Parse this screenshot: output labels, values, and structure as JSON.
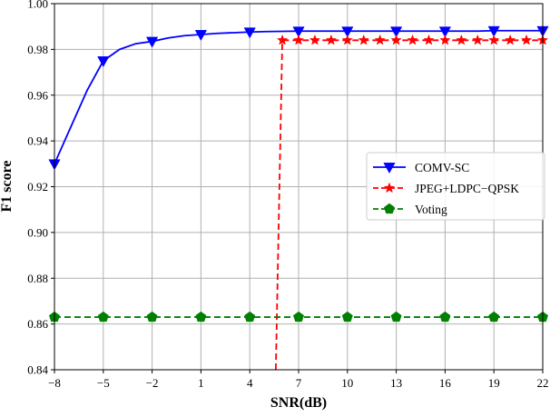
{
  "chart_data": {
    "type": "line",
    "title": "",
    "xlabel": "SNR(dB)",
    "ylabel": "F1 score",
    "xlim": [
      -8,
      22
    ],
    "ylim": [
      0.84,
      1.0
    ],
    "x_ticks": [
      -8,
      -5,
      -2,
      1,
      4,
      7,
      10,
      13,
      16,
      19,
      22
    ],
    "x_tick_labels": [
      "−8",
      "−5",
      "−2",
      "1",
      "4",
      "7",
      "10",
      "13",
      "16",
      "19",
      "22"
    ],
    "y_ticks": [
      0.84,
      0.86,
      0.88,
      0.9,
      0.92,
      0.94,
      0.96,
      0.98,
      1.0
    ],
    "y_tick_labels": [
      "0.84",
      "0.86",
      "0.88",
      "0.90",
      "0.92",
      "0.94",
      "0.96",
      "0.98",
      "1.00"
    ],
    "grid": true,
    "legend_position": "center-right",
    "series": [
      {
        "name": "COMV-SC",
        "color": "#0000ff",
        "line_style": "solid",
        "marker": "triangle-down",
        "line_x": [
          -8,
          -7,
          -6,
          -5,
          -4,
          -3,
          -2,
          -1,
          0,
          1,
          2,
          3,
          4,
          5,
          6,
          7,
          8,
          9,
          10,
          11,
          12,
          13,
          14,
          15,
          16,
          17,
          18,
          19,
          20,
          21,
          22
        ],
        "line_y": [
          0.93,
          0.946,
          0.962,
          0.975,
          0.98,
          0.9825,
          0.9835,
          0.985,
          0.986,
          0.9865,
          0.987,
          0.9873,
          0.9876,
          0.9878,
          0.9879,
          0.988,
          0.988,
          0.988,
          0.988,
          0.988,
          0.988,
          0.988,
          0.988,
          0.988,
          0.988,
          0.988,
          0.988,
          0.9882,
          0.9882,
          0.9882,
          0.9882
        ],
        "marker_x": [
          -8,
          -5,
          -2,
          1,
          4,
          7,
          10,
          13,
          16,
          19,
          22
        ],
        "marker_y": [
          0.93,
          0.975,
          0.9835,
          0.9865,
          0.9876,
          0.988,
          0.988,
          0.988,
          0.988,
          0.9882,
          0.9882
        ]
      },
      {
        "name": "JPEG+LDPC−QPSK",
        "color": "#ff0000",
        "line_style": "dashed",
        "marker": "star",
        "line_x": [
          5.6,
          6,
          7,
          8,
          9,
          10,
          11,
          12,
          13,
          14,
          15,
          16,
          17,
          18,
          19,
          20,
          21,
          22
        ],
        "line_y": [
          0.84,
          0.984,
          0.984,
          0.984,
          0.984,
          0.984,
          0.984,
          0.984,
          0.984,
          0.984,
          0.984,
          0.984,
          0.984,
          0.984,
          0.984,
          0.984,
          0.984,
          0.984
        ],
        "marker_x": [
          6,
          7,
          8,
          9,
          10,
          11,
          12,
          13,
          14,
          15,
          16,
          17,
          18,
          19,
          20,
          21,
          22
        ],
        "marker_y": [
          0.984,
          0.984,
          0.984,
          0.984,
          0.984,
          0.984,
          0.984,
          0.984,
          0.984,
          0.984,
          0.984,
          0.984,
          0.984,
          0.984,
          0.984,
          0.984,
          0.984
        ]
      },
      {
        "name": "Voting",
        "color": "#008000",
        "line_style": "dashed",
        "marker": "pentagon",
        "line_x": [
          -8,
          22
        ],
        "line_y": [
          0.863,
          0.863
        ],
        "marker_x": [
          -8,
          -5,
          -2,
          1,
          4,
          7,
          10,
          13,
          16,
          19,
          22
        ],
        "marker_y": [
          0.863,
          0.863,
          0.863,
          0.863,
          0.863,
          0.863,
          0.863,
          0.863,
          0.863,
          0.863,
          0.863
        ]
      }
    ]
  }
}
